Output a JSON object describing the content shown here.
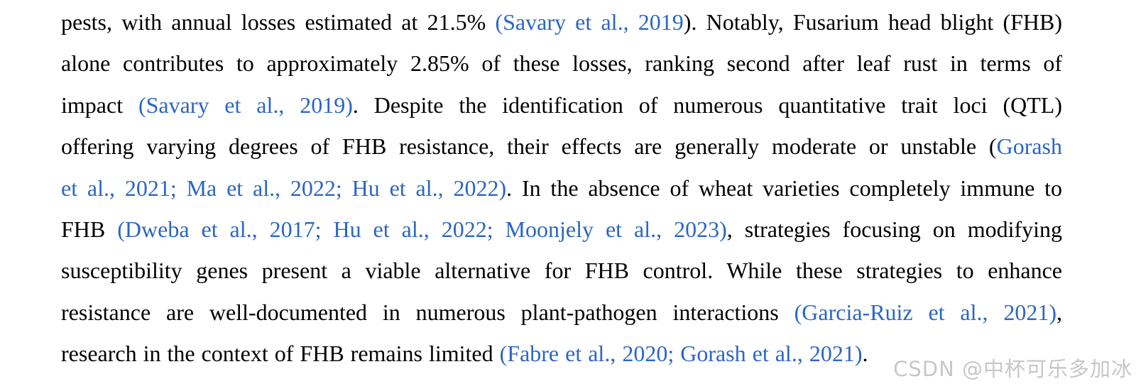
{
  "colors": {
    "background": "#ffffff",
    "text": "#000000",
    "link": "#2b66c4",
    "watermark": "#c7c7c7"
  },
  "paragraph": {
    "lines": [
      {
        "justify": true,
        "segments": [
          {
            "text": "pests, with annual losses estimated at 21.5% ",
            "link": false
          },
          {
            "text": "(Savary et al., 2019",
            "link": true
          },
          {
            "text": "). Notably, Fusarium head blight (FHB)",
            "link": false
          }
        ]
      },
      {
        "justify": true,
        "segments": [
          {
            "text": "alone contributes to approximately 2.85% of these losses, ranking second after leaf rust in terms of",
            "link": false
          }
        ]
      },
      {
        "justify": true,
        "segments": [
          {
            "text": "impact ",
            "link": false
          },
          {
            "text": "(Savary et al., 2019)",
            "link": true
          },
          {
            "text": ". Despite the identification of numerous quantitative trait loci (QTL)",
            "link": false
          }
        ]
      },
      {
        "justify": true,
        "segments": [
          {
            "text": "offering varying degrees of FHB resistance, their effects are generally moderate or unstable (",
            "link": false
          },
          {
            "text": "Gorash",
            "link": true
          }
        ]
      },
      {
        "justify": true,
        "segments": [
          {
            "text": "et al., 2021; Ma et al., 2022; Hu et al., 2022)",
            "link": true
          },
          {
            "text": ". In the absence of wheat varieties completely immune to",
            "link": false
          }
        ]
      },
      {
        "justify": true,
        "segments": [
          {
            "text": "FHB ",
            "link": false
          },
          {
            "text": "(Dweba et al., 2017; Hu et al., 2022; Moonjely et al., 2023)",
            "link": true
          },
          {
            "text": ", strategies focusing on modifying",
            "link": false
          }
        ]
      },
      {
        "justify": true,
        "segments": [
          {
            "text": "susceptibility genes present a viable alternative for FHB control. While these strategies to enhance",
            "link": false
          }
        ]
      },
      {
        "justify": true,
        "segments": [
          {
            "text": "resistance are well-documented in numerous plant-pathogen interactions ",
            "link": false
          },
          {
            "text": "(Garcia-Ruiz et al., 2021)",
            "link": true
          },
          {
            "text": ",",
            "link": false
          }
        ]
      },
      {
        "justify": false,
        "segments": [
          {
            "text": "research in the context of FHB remains limited ",
            "link": false
          },
          {
            "text": "(Fabre et al., 2020; Gorash et al., 2021)",
            "link": true
          },
          {
            "text": ".",
            "link": false
          }
        ]
      }
    ]
  },
  "watermark": {
    "text": "CSDN @中杯可乐多加冰"
  }
}
